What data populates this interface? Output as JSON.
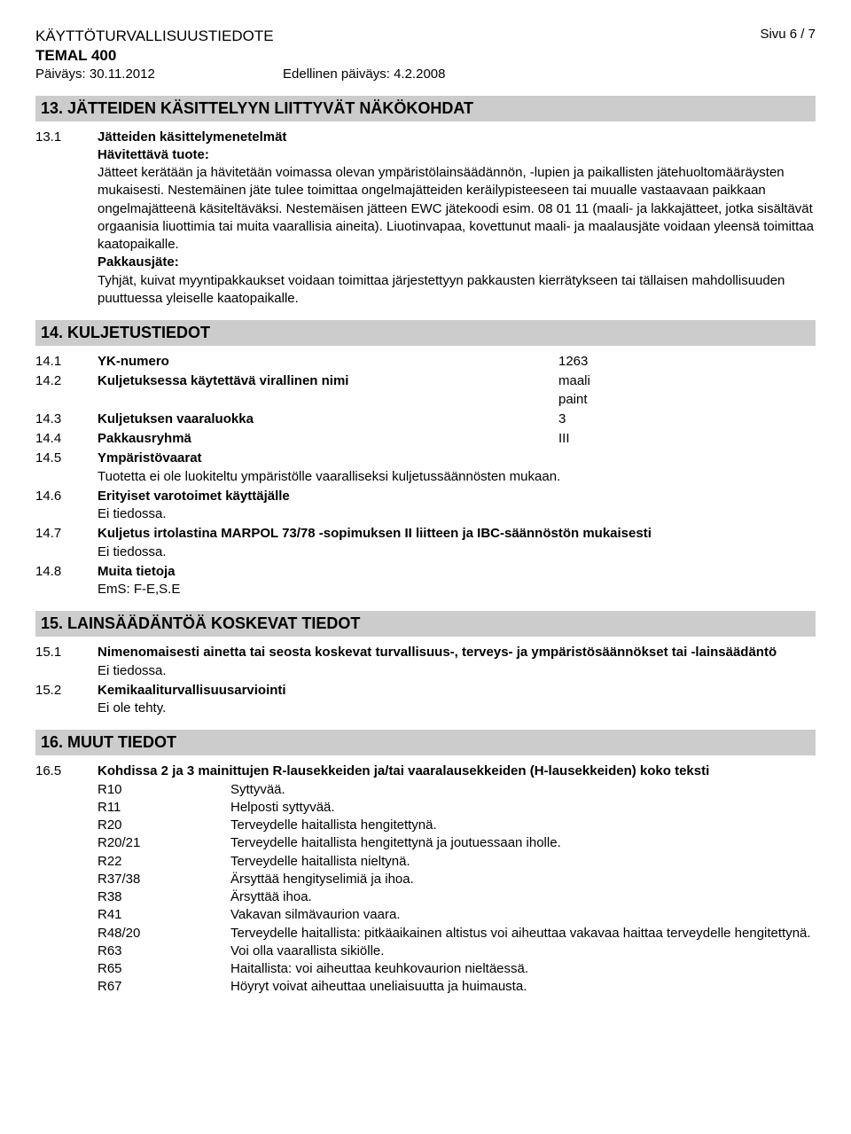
{
  "header": {
    "doc_type": "KÄYTTÖTURVALLISUUSTIEDOTE",
    "product": "TEMAL 400",
    "date_label": "Päiväys: 30.11.2012",
    "prev_date_label": "Edellinen päiväys: 4.2.2008",
    "page_indicator": "Sivu 6 / 7"
  },
  "s13": {
    "banner": "13. JÄTTEIDEN KÄSITTELYYN LIITTYVÄT NÄKÖKOHDAT",
    "num": "13.1",
    "title": "Jätteiden käsittelymenetelmät",
    "sub1": "Hävitettävä tuote:",
    "p1": "Jätteet kerätään ja hävitetään voimassa olevan ympäristölainsäädännön, -lupien ja paikallisten jätehuoltomääräysten mukaisesti. Nestemäinen jäte tulee toimittaa ongelmajätteiden keräilypisteeseen tai muualle vastaavaan paikkaan ongelmajätteenä käsiteltäväksi. Nestemäisen jätteen EWC jätekoodi esim. 08 01 11 (maali- ja lakkajätteet, jotka sisältävät orgaanisia liuottimia tai muita vaarallisia aineita). Liuotinvapaa, kovettunut maali- ja maalausjäte voidaan yleensä toimittaa kaatopaikalle.",
    "sub2": "Pakkausjäte:",
    "p2": "Tyhjät, kuivat myyntipakkaukset voidaan toimittaa järjestettyyn pakkausten kierrätykseen tai tällaisen mahdollisuuden puuttuessa yleiselle kaatopaikalle."
  },
  "s14": {
    "banner": "14. KULJETUSTIEDOT",
    "r1": {
      "num": "14.1",
      "label": "YK-numero",
      "value": "1263"
    },
    "r2": {
      "num": "14.2",
      "label": "Kuljetuksessa käytettävä virallinen nimi",
      "value1": "maali",
      "value2": "paint"
    },
    "r3": {
      "num": "14.3",
      "label": "Kuljetuksen vaaraluokka",
      "value": "3"
    },
    "r4": {
      "num": "14.4",
      "label": "Pakkausryhmä",
      "value": "III"
    },
    "r5": {
      "num": "14.5",
      "label": "Ympäristövaarat",
      "text": "Tuotetta ei ole luokiteltu ympäristölle vaaralliseksi kuljetussäännösten mukaan."
    },
    "r6": {
      "num": "14.6",
      "label": "Erityiset varotoimet käyttäjälle",
      "text": "Ei tiedossa."
    },
    "r7": {
      "num": "14.7",
      "label": "Kuljetus irtolastina MARPOL 73/78 -sopimuksen II liitteen ja IBC-säännöstön mukaisesti",
      "text": "Ei tiedossa."
    },
    "r8": {
      "num": "14.8",
      "label": "Muita tietoja",
      "text": "EmS: F-E,S.E"
    }
  },
  "s15": {
    "banner": "15. LAINSÄÄDÄNTÖÄ KOSKEVAT TIEDOT",
    "r1": {
      "num": "15.1",
      "label": "Nimenomaisesti ainetta tai seosta koskevat turvallisuus-, terveys- ja ympäristösäännökset tai -lainsäädäntö",
      "text": "Ei tiedossa."
    },
    "r2": {
      "num": "15.2",
      "label": "Kemikaaliturvallisuusarviointi",
      "text": "Ei ole tehty."
    }
  },
  "s16": {
    "banner": "16. MUUT TIEDOT",
    "num": "16.5",
    "label": "Kohdissa 2 ja 3 mainittujen R-lausekkeiden ja/tai vaaralausekkeiden (H-lausekkeiden) koko teksti",
    "rows": [
      {
        "code": "R10",
        "text": "Syttyvää."
      },
      {
        "code": "R11",
        "text": "Helposti syttyvää."
      },
      {
        "code": "R20",
        "text": "Terveydelle haitallista hengitettynä."
      },
      {
        "code": "R20/21",
        "text": "Terveydelle haitallista hengitettynä ja joutuessaan iholle."
      },
      {
        "code": "R22",
        "text": "Terveydelle haitallista nieltynä."
      },
      {
        "code": "R37/38",
        "text": "Ärsyttää hengityselimiä ja ihoa."
      },
      {
        "code": "R38",
        "text": "Ärsyttää ihoa."
      },
      {
        "code": "R41",
        "text": "Vakavan silmävaurion vaara."
      },
      {
        "code": "R48/20",
        "text": "Terveydelle haitallista: pitkäaikainen altistus voi aiheuttaa vakavaa haittaa terveydelle hengitettynä."
      },
      {
        "code": "R63",
        "text": "Voi olla vaarallista sikiölle."
      },
      {
        "code": "R65",
        "text": "Haitallista: voi aiheuttaa keuhkovaurion nieltäessä."
      },
      {
        "code": "R67",
        "text": "Höyryt voivat aiheuttaa uneliaisuutta ja huimausta."
      }
    ]
  }
}
